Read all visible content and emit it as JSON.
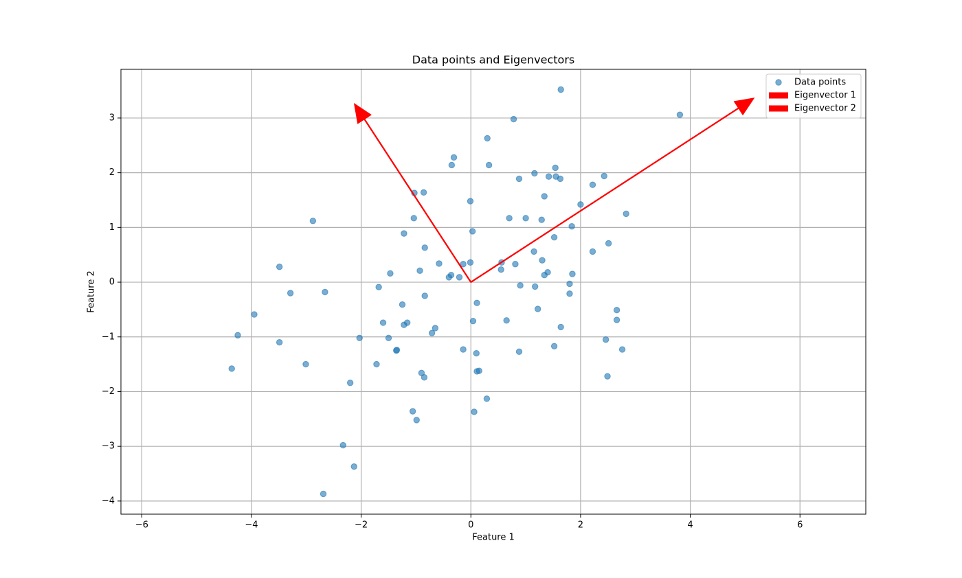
{
  "chart_data": {
    "type": "scatter",
    "title": "Data points and Eigenvectors",
    "x_label": "Feature 1",
    "y_label": "Feature 2",
    "xlim": [
      -6.38,
      7.2
    ],
    "ylim": [
      -4.24,
      3.89
    ],
    "xticks": [
      {
        "value": -6,
        "label": "−6"
      },
      {
        "value": -4,
        "label": "−4"
      },
      {
        "value": -2,
        "label": "−2"
      },
      0,
      2,
      4,
      6
    ],
    "yticks": [
      {
        "value": -4,
        "label": "−4"
      },
      {
        "value": -3,
        "label": "−3"
      },
      {
        "value": -2,
        "label": "−2"
      },
      {
        "value": -1,
        "label": "−1"
      },
      0,
      1,
      2,
      3
    ],
    "grid": true,
    "legend": "upper right",
    "series": [
      {
        "name": "Data points",
        "color": "#1f77b4",
        "alpha": 0.6,
        "x": [
          1.64,
          3.81,
          0.78,
          0.3,
          -0.31,
          -0.35,
          0.33,
          1.54,
          1.16,
          2.43,
          1.42,
          1.55,
          0.88,
          1.63,
          2.22,
          -1.03,
          -0.86,
          1.34,
          -0.01,
          2.0,
          2.83,
          -2.88,
          -1.04,
          0.7,
          1.0,
          1.29,
          1.84,
          0.03,
          -1.22,
          1.52,
          2.51,
          -0.84,
          2.22,
          1.15,
          -0.01,
          0.56,
          -0.58,
          -0.14,
          0.81,
          1.3,
          -3.49,
          0.55,
          -0.93,
          1.4,
          1.85,
          -1.47,
          -0.36,
          1.34,
          -0.4,
          -0.21,
          0.9,
          1.8,
          -1.68,
          1.17,
          -3.29,
          -2.66,
          1.8,
          -0.84,
          0.11,
          -1.25,
          1.22,
          2.66,
          -3.95,
          2.66,
          0.65,
          0.04,
          -1.16,
          -1.6,
          -1.22,
          1.64,
          -0.65,
          -0.71,
          -4.25,
          -1.5,
          -2.03,
          -3.49,
          2.46,
          1.52,
          2.76,
          -0.14,
          -1.35,
          -1.36,
          0.88,
          0.1,
          -3.01,
          -1.72,
          -4.36,
          0.15,
          0.11,
          -0.9,
          -0.85,
          2.49,
          -2.2,
          0.29,
          -1.06,
          0.06,
          -0.99,
          -2.33,
          -2.13,
          -2.69
        ],
        "y": [
          3.52,
          3.06,
          2.98,
          2.63,
          2.28,
          2.14,
          2.14,
          2.09,
          1.99,
          1.94,
          1.93,
          1.93,
          1.89,
          1.89,
          1.78,
          1.63,
          1.64,
          1.57,
          1.48,
          1.42,
          1.25,
          1.12,
          1.17,
          1.17,
          1.17,
          1.14,
          1.02,
          0.93,
          0.89,
          0.82,
          0.71,
          0.63,
          0.56,
          0.56,
          0.36,
          0.36,
          0.34,
          0.33,
          0.33,
          0.4,
          0.28,
          0.23,
          0.21,
          0.18,
          0.15,
          0.16,
          0.13,
          0.13,
          0.09,
          0.09,
          -0.06,
          -0.03,
          -0.09,
          -0.08,
          -0.2,
          -0.18,
          -0.21,
          -0.25,
          -0.38,
          -0.41,
          -0.49,
          -0.51,
          -0.59,
          -0.69,
          -0.7,
          -0.71,
          -0.74,
          -0.74,
          -0.78,
          -0.82,
          -0.84,
          -0.93,
          -0.97,
          -1.02,
          -1.02,
          -1.1,
          -1.05,
          -1.17,
          -1.23,
          -1.23,
          -1.24,
          -1.25,
          -1.27,
          -1.3,
          -1.5,
          -1.5,
          -1.58,
          -1.62,
          -1.63,
          -1.66,
          -1.74,
          -1.72,
          -1.84,
          -2.13,
          -2.36,
          -2.37,
          -2.52,
          -2.98,
          -3.37,
          -3.87
        ]
      }
    ],
    "vectors": [
      {
        "name": "Eigenvector 1",
        "color": "#ff0000",
        "x": 0,
        "y": 0,
        "dx": 5.17,
        "dy": 3.37
      },
      {
        "name": "Eigenvector 2",
        "color": "#ff0000",
        "x": 0,
        "y": 0,
        "dx": -2.13,
        "dy": 3.27
      }
    ]
  }
}
